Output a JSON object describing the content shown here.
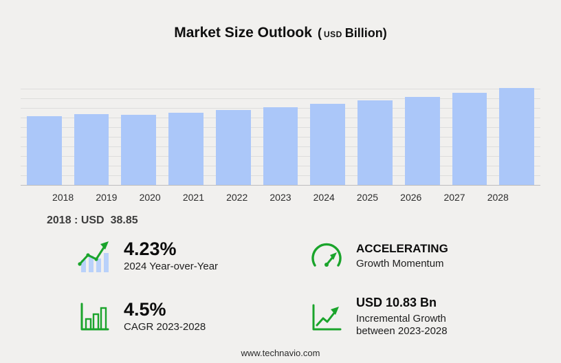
{
  "title": {
    "main": "Market Size Outlook",
    "paren_open": "(",
    "unit_small": "USD",
    "unit": "Billion",
    "paren_close": ")"
  },
  "chart_data": {
    "type": "bar",
    "title": "Market Size Outlook (USD Billion)",
    "categories": [
      "2018",
      "2019",
      "2020",
      "2021",
      "2022",
      "2023",
      "2024",
      "2025",
      "2026",
      "2027",
      "2028"
    ],
    "values": [
      38.85,
      40.2,
      39.7,
      40.9,
      42.4,
      44.0,
      45.9,
      47.7,
      49.9,
      52.1,
      54.8
    ],
    "xlabel": "",
    "ylabel": "USD Billion",
    "ylim": [
      0,
      58
    ],
    "grid": true,
    "legend": false,
    "bar_color": "#abc7f9"
  },
  "baseline": {
    "label": "2018 : USD",
    "value": "38.85"
  },
  "stats": {
    "yoy": {
      "icon": "bar-growth-icon",
      "value": "4.23%",
      "label": "2024 Year-over-Year"
    },
    "momentum": {
      "icon": "speedometer-icon",
      "title": "ACCELERATING",
      "label": "Growth Momentum"
    },
    "cagr": {
      "icon": "chart-bars-icon",
      "value": "4.5%",
      "label": "CAGR 2023-2028"
    },
    "incremental": {
      "icon": "growth-arrow-icon",
      "title": "USD 10.83 Bn",
      "label_line1": "Incremental Growth",
      "label_line2": "between 2023-2028"
    }
  },
  "footer": {
    "url": "www.technavio.com"
  },
  "colors": {
    "accent_green": "#1aa42b",
    "bar": "#abc7f9",
    "background": "#f1f0ee"
  }
}
